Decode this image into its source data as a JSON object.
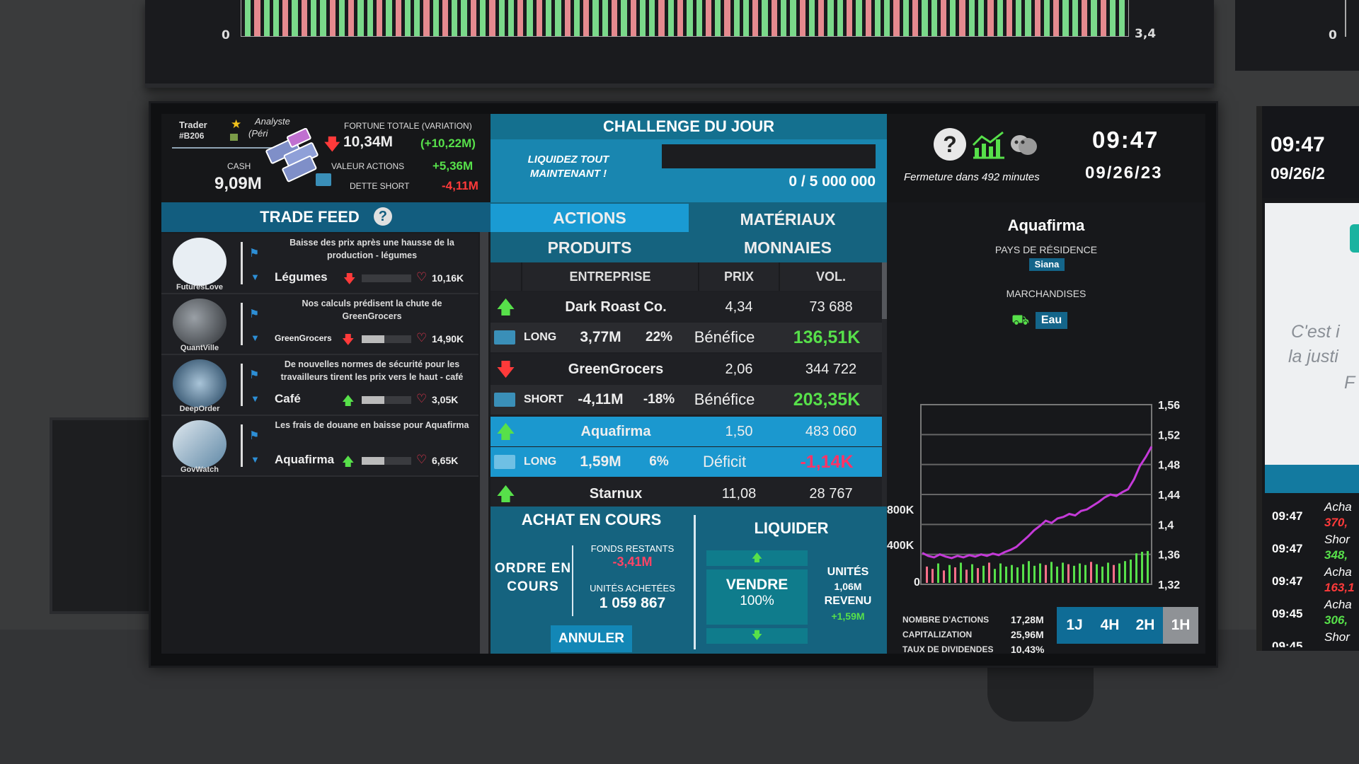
{
  "top_chart": {
    "left_label": "0",
    "right_label": "3,4",
    "right_monitor_label": "0"
  },
  "trader": {
    "title": "Trader",
    "id": "#B206",
    "rank": "Analyste",
    "rank_sub": "(Péri",
    "cash_label": "CASH",
    "cash_value": "9,09M",
    "fortune_label": "FORTUNE TOTALE (VARIATION)",
    "fortune_value": "10,34M",
    "fortune_change": "(+10,22M)",
    "actions_label": "VALEUR ACTIONS",
    "actions_value": "+5,36M",
    "short_label": "DETTE SHORT",
    "short_value": "-4,11M"
  },
  "challenge": {
    "title": "CHALLENGE DU JOUR",
    "task": "LIQUIDEZ TOUT MAINTENANT !",
    "progress_text": "0 / 5 000 000",
    "progress": 0
  },
  "clock": {
    "help_icon": "question-icon",
    "closing_text": "Fermeture dans 492 minutes",
    "time": "09:47",
    "date": "09/26/23"
  },
  "feed": {
    "title": "TRADE FEED",
    "items": [
      {
        "author": "FuturesLove",
        "text": "Baisse des prix après une hausse de la production - légumes",
        "tag": "Légumes",
        "likes": "10,16K",
        "trend": "down",
        "bar": 0
      },
      {
        "author": "QuantVille",
        "text": "Nos calculs prédisent la chute de GreenGrocers",
        "tag": "GreenGrocers",
        "likes": "14,90K",
        "trend": "down",
        "bar": 0.45
      },
      {
        "author": "DeepOrder",
        "text": "De nouvelles normes de sécurité pour les travailleurs tirent les prix vers le haut - café",
        "tag": "Café",
        "likes": "3,05K",
        "trend": "up",
        "bar": 0.45
      },
      {
        "author": "GovWatch",
        "text": "Les frais de douane en baisse pour Aquafirma",
        "tag": "Aquafirma",
        "likes": "6,65K",
        "trend": "up",
        "bar": 0.45
      }
    ]
  },
  "tabs": {
    "actions": "ACTIONS",
    "materiaux": "MATÉRIAUX",
    "produits": "PRODUITS",
    "monnaies": "MONNAIES"
  },
  "table": {
    "headers": {
      "entreprise": "ENTREPRISE",
      "prix": "PRIX",
      "vol": "VOL."
    },
    "rows": [
      {
        "kind": "stock",
        "trend": "up",
        "name": "Dark Roast Co.",
        "price": "4,34",
        "vol": "73 688"
      },
      {
        "kind": "position",
        "type": "LONG",
        "amount": "3,77M",
        "pct": "22%",
        "result": "Bénéfice",
        "pnl": "136,51K",
        "pnl_color": "#57e04a"
      },
      {
        "kind": "stock",
        "trend": "down",
        "name": "GreenGrocers",
        "price": "2,06",
        "vol": "344 722"
      },
      {
        "kind": "position",
        "type": "SHORT",
        "amount": "-4,11M",
        "pct": "-18%",
        "result": "Bénéfice",
        "pnl": "203,35K",
        "pnl_color": "#57e04a"
      },
      {
        "kind": "stock",
        "trend": "up",
        "name": "Aquafirma",
        "price": "1,50",
        "vol": "483 060",
        "selected": true
      },
      {
        "kind": "position",
        "type": "LONG",
        "amount": "1,59M",
        "pct": "6%",
        "result": "Déficit",
        "pnl": "-1,14K",
        "pnl_color": "#ff3366",
        "selected": true
      },
      {
        "kind": "stock",
        "trend": "up",
        "name": "Starnux",
        "price": "11,08",
        "vol": "28 767"
      }
    ]
  },
  "achat": {
    "title": "ACHAT EN COURS",
    "ordre": "ORDRE EN COURS",
    "fonds_label": "FONDS RESTANTS",
    "fonds_value": "-3,41M",
    "unites_label": "UNITÉS ACHETÉES",
    "unites_value": "1 059 867",
    "annuler": "ANNULER"
  },
  "liquider": {
    "title": "LIQUIDER",
    "vendre": "VENDRE",
    "pct": "100%",
    "unites_label": "UNITÉS",
    "unites_value": "1,06M",
    "revenu_label": "REVENU",
    "revenu_value": "+1,59M"
  },
  "company": {
    "name": "Aquafirma",
    "country_label": "PAYS DE RÉSIDENCE",
    "country": "Siana",
    "goods_label": "MARCHANDISES",
    "goods": "Eau",
    "stats": [
      {
        "label": "NOMBRE D'ACTIONS",
        "value": "17,28M"
      },
      {
        "label": "CAPITALIZATION",
        "value": "25,96M"
      },
      {
        "label": "TAUX DE DIVIDENDES",
        "value": "10,43%"
      }
    ],
    "ranges": [
      "1J",
      "4H",
      "2H",
      "1H"
    ],
    "active_range": "1H"
  },
  "chart_data": {
    "type": "line",
    "y_ticks": [
      "1,56",
      "1,52",
      "1,48",
      "1,44",
      "1,4",
      "1,36",
      "1,32"
    ],
    "ylim": [
      1.32,
      1.56
    ],
    "vol_ticks": [
      "800K",
      "400K",
      "0"
    ],
    "vol_lim": [
      0,
      1000000
    ],
    "price": [
      1.362,
      1.358,
      1.356,
      1.36,
      1.357,
      1.355,
      1.358,
      1.356,
      1.359,
      1.357,
      1.36,
      1.358,
      1.361,
      1.359,
      1.363,
      1.366,
      1.37,
      1.377,
      1.384,
      1.392,
      1.398,
      1.405,
      1.402,
      1.408,
      1.41,
      1.414,
      1.412,
      1.418,
      1.42,
      1.425,
      1.43,
      1.436,
      1.44,
      1.438,
      1.443,
      1.447,
      1.46,
      1.478,
      1.49,
      1.504
    ],
    "volume": [
      210000,
      180000,
      250000,
      160000,
      230000,
      200000,
      260000,
      170000,
      240000,
      190000,
      220000,
      260000,
      180000,
      250000,
      210000,
      230000,
      200000,
      240000,
      280000,
      220000,
      250000,
      230000,
      270000,
      210000,
      260000,
      240000,
      220000,
      250000,
      230000,
      270000,
      240000,
      210000,
      260000,
      230000,
      250000,
      280000,
      300000,
      380000,
      400000,
      410000
    ],
    "volume_colors": [
      "#ff6f8a",
      "#ff6f8a",
      "#57e04a",
      "#ff6f8a",
      "#57e04a",
      "#ff6f8a",
      "#57e04a",
      "#ff6f8a",
      "#57e04a",
      "#ff6f8a",
      "#57e04a",
      "#ff6f8a",
      "#57e04a",
      "#57e04a",
      "#57e04a",
      "#57e04a",
      "#57e04a",
      "#57e04a",
      "#57e04a",
      "#57e04a",
      "#57e04a",
      "#ff6f8a",
      "#57e04a",
      "#57e04a",
      "#57e04a",
      "#ff6f8a",
      "#57e04a",
      "#57e04a",
      "#57e04a",
      "#ff6f8a",
      "#57e04a",
      "#57e04a",
      "#57e04a",
      "#ff6f8a",
      "#57e04a",
      "#57e04a",
      "#57e04a",
      "#57e04a",
      "#57e04a",
      "#57e04a"
    ],
    "line_color": "#c43ad8"
  },
  "right_monitor": {
    "time": "09:47",
    "date": "09/26/2",
    "quote1": "C'est i",
    "quote2": "la justi",
    "quote3": "F",
    "log": [
      {
        "time": "09:47",
        "action": "Acha",
        "value": "370,"
      },
      {
        "time": "09:47",
        "action": "Shor",
        "value": "348,"
      },
      {
        "time": "09:47",
        "action": "Acha",
        "value": "163,1"
      },
      {
        "time": "09:45",
        "action": "Acha",
        "value": "306,"
      },
      {
        "time": "09:45",
        "action": "Shor",
        "value": ""
      }
    ]
  }
}
